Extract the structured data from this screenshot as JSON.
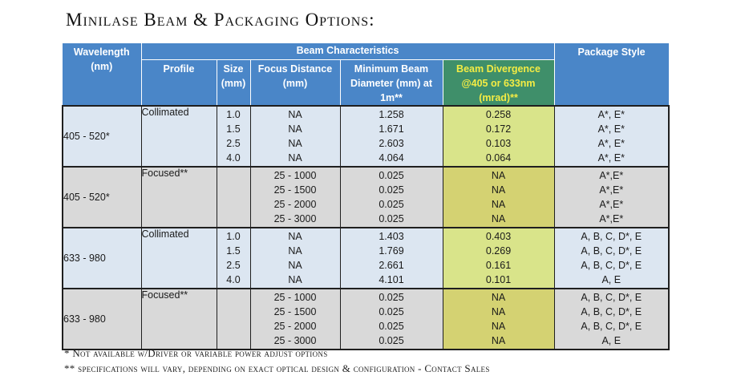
{
  "title": "Minilase Beam & Packaging Options:",
  "header": {
    "wavelength": "Wavelength (nm)",
    "beam_characteristics": "Beam Characteristics",
    "profile": "Profile",
    "size": "Size (mm)",
    "focus_distance": "Focus Distance (mm)",
    "min_beam_diameter": "Minimum Beam Diameter (mm) at 1m**",
    "beam_divergence": "Beam Divergence @405 or 633nm (mrad)**",
    "package_style": "Package Style"
  },
  "colors": {
    "header_blue": "#4a86c8",
    "divergence_header": "#3f8f6a",
    "divergence_header_text": "#f4ec44",
    "row_light": "#dce6f1",
    "row_gray": "#d9d9d9",
    "divergence_col": "#d9e48a"
  },
  "groups": [
    {
      "wavelength": "405 - 520*",
      "profile": "Collimated",
      "sizes": [
        "1.0",
        "1.5",
        "2.5",
        "4.0"
      ],
      "focus": [
        "NA",
        "NA",
        "NA",
        "NA"
      ],
      "diameter": [
        "1.258",
        "1.671",
        "2.603",
        "4.064"
      ],
      "divergence": [
        "0.258",
        "0.172",
        "0.103",
        "0.064"
      ],
      "package": [
        "A*, E*",
        "A*, E*",
        "A*, E*",
        "A*, E*"
      ]
    },
    {
      "wavelength": "405 - 520*",
      "profile": "Focused**",
      "sizes": [
        "",
        "",
        "",
        ""
      ],
      "focus": [
        "25 - 1000",
        "25 - 1500",
        "25 - 2000",
        "25 - 3000"
      ],
      "diameter": [
        "0.025",
        "0.025",
        "0.025",
        "0.025"
      ],
      "divergence": [
        "NA",
        "NA",
        "NA",
        "NA"
      ],
      "package": [
        "A*,E*",
        "A*,E*",
        "A*,E*",
        "A*,E*"
      ]
    },
    {
      "wavelength": "633 - 980",
      "profile": "Collimated",
      "sizes": [
        "1.0",
        "1.5",
        "2.5",
        "4.0"
      ],
      "focus": [
        "NA",
        "NA",
        "NA",
        "NA"
      ],
      "diameter": [
        "1.403",
        "1.769",
        "2.661",
        "4.101"
      ],
      "divergence": [
        "0.403",
        "0.269",
        "0.161",
        "0.101"
      ],
      "package": [
        "A, B, C, D*, E",
        "A, B, C, D*, E",
        "A, B, C, D*, E",
        "A, E"
      ]
    },
    {
      "wavelength": "633 - 980",
      "profile": "Focused**",
      "sizes": [
        "",
        "",
        "",
        ""
      ],
      "focus": [
        "25 - 1000",
        "25 - 1500",
        "25 - 2000",
        "25 - 3000"
      ],
      "diameter": [
        "0.025",
        "0.025",
        "0.025",
        "0.025"
      ],
      "divergence": [
        "NA",
        "NA",
        "NA",
        "NA"
      ],
      "package": [
        "A, B, C, D*, E",
        "A, B, C, D*, E",
        "A, B, C, D*, E",
        "A, E"
      ]
    }
  ],
  "footnotes": [
    "* Not available w/Driver or variable power adjust options",
    "** specifications will vary, depending on exact optical design & configuration - Contact Sales"
  ]
}
